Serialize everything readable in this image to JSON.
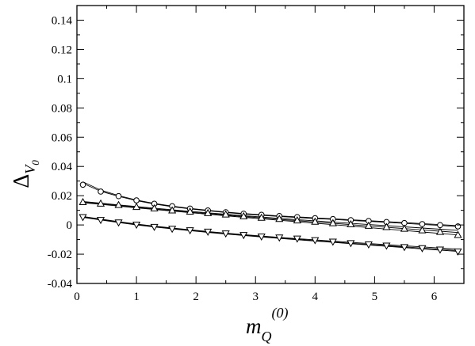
{
  "chart_data": {
    "type": "line",
    "x_range": [
      0,
      6.5
    ],
    "y_range": [
      -0.04,
      0.15
    ],
    "x_ticks": [
      {
        "value": 0,
        "label": "0"
      },
      {
        "value": 1,
        "label": "1"
      },
      {
        "value": 2,
        "label": "2"
      },
      {
        "value": 3,
        "label": "3"
      },
      {
        "value": 4,
        "label": "4"
      },
      {
        "value": 5,
        "label": "5"
      },
      {
        "value": 6,
        "label": "6"
      }
    ],
    "y_ticks": [
      {
        "value": -0.04,
        "label": "-0.04"
      },
      {
        "value": -0.02,
        "label": "-0.02"
      },
      {
        "value": 0,
        "label": "0"
      },
      {
        "value": 0.02,
        "label": "0.02"
      },
      {
        "value": 0.04,
        "label": "0.04"
      },
      {
        "value": 0.06,
        "label": "0.06"
      },
      {
        "value": 0.08,
        "label": "0.08"
      },
      {
        "value": 0.1,
        "label": "0.1"
      },
      {
        "value": 0.12,
        "label": "0.12"
      },
      {
        "value": 0.14,
        "label": "0.14"
      }
    ],
    "xlabel": {
      "main": "m",
      "sub": "Q",
      "sup": "(0)"
    },
    "ylabel": {
      "main": "Δ",
      "sub": "V",
      "subsub": "0"
    },
    "grid": false,
    "marker_color": "#000000",
    "series": [
      {
        "marker": "circle",
        "x": [
          0.1,
          0.4,
          0.7,
          1.0,
          1.3,
          1.6,
          1.9,
          2.2,
          2.5,
          2.8,
          3.1,
          3.4,
          3.7,
          4.0,
          4.3,
          4.6,
          4.9,
          5.2,
          5.5,
          5.8,
          6.1,
          6.4
        ],
        "y": [
          0.0275,
          0.0228,
          0.0197,
          0.0168,
          0.0145,
          0.0128,
          0.0112,
          0.0099,
          0.0087,
          0.0077,
          0.0069,
          0.0061,
          0.0054,
          0.0046,
          0.004,
          0.0033,
          0.0027,
          0.002,
          0.0013,
          0.0006,
          -0.0001,
          -0.001
        ],
        "lines_y": [
          [
            0.0295,
            0.0238,
            0.0201,
            0.017,
            0.0147,
            0.0129,
            0.0113,
            0.01,
            0.0088,
            0.0078,
            0.007,
            0.0062,
            0.0055,
            0.0048,
            0.0042,
            0.0035,
            0.0029,
            0.0022,
            0.0016,
            0.0009,
            0.0002,
            -0.0005
          ],
          [
            0.0285,
            0.023,
            0.0196,
            0.0166,
            0.0143,
            0.0125,
            0.011,
            0.0097,
            0.0085,
            0.0075,
            0.0066,
            0.0058,
            0.0051,
            0.0044,
            0.0038,
            0.0031,
            0.0025,
            0.0018,
            0.0011,
            0.0004,
            -0.0003,
            -0.0012
          ]
        ]
      },
      {
        "marker": "triangle-up",
        "x": [
          0.1,
          0.4,
          0.7,
          1.0,
          1.3,
          1.6,
          1.9,
          2.2,
          2.5,
          2.8,
          3.1,
          3.4,
          3.7,
          4.0,
          4.3,
          4.6,
          4.9,
          5.2,
          5.5,
          5.8,
          6.1,
          6.4
        ],
        "y": [
          0.0155,
          0.0145,
          0.0135,
          0.0122,
          0.0112,
          0.0098,
          0.009,
          0.008,
          0.007,
          0.0058,
          0.0048,
          0.004,
          0.003,
          0.0021,
          0.0011,
          0.0003,
          -0.0007,
          -0.0016,
          -0.0027,
          -0.0038,
          -0.0049,
          -0.007
        ],
        "lines_y": [
          [
            0.016,
            0.0149,
            0.0137,
            0.0126,
            0.0115,
            0.0104,
            0.0093,
            0.0083,
            0.0073,
            0.0063,
            0.0054,
            0.0045,
            0.0036,
            0.0028,
            0.0019,
            0.0011,
            0.0003,
            -0.0005,
            -0.0013,
            -0.0021,
            -0.0029,
            -0.0037
          ],
          [
            0.0156,
            0.0145,
            0.0133,
            0.0121,
            0.011,
            0.0099,
            0.0088,
            0.0078,
            0.0068,
            0.0058,
            0.0048,
            0.0038,
            0.0029,
            0.002,
            0.0011,
            0.0002,
            -0.0007,
            -0.0016,
            -0.0025,
            -0.0034,
            -0.0043,
            -0.0052
          ],
          [
            0.0152,
            0.0141,
            0.0129,
            0.0117,
            0.0106,
            0.0095,
            0.0084,
            0.0073,
            0.0063,
            0.0052,
            0.0042,
            0.0032,
            0.0022,
            0.0012,
            0.0002,
            -0.0008,
            -0.0018,
            -0.0028,
            -0.0038,
            -0.0048,
            -0.0058,
            -0.0068
          ]
        ]
      },
      {
        "marker": "triangle-down",
        "x": [
          0.1,
          0.4,
          0.7,
          1.0,
          1.3,
          1.6,
          1.9,
          2.2,
          2.5,
          2.8,
          3.1,
          3.4,
          3.7,
          4.0,
          4.3,
          4.6,
          4.9,
          5.2,
          5.5,
          5.8,
          6.1,
          6.4
        ],
        "y": [
          0.0055,
          0.0035,
          0.0018,
          0.0003,
          -0.0012,
          -0.0025,
          -0.0035,
          -0.0045,
          -0.0057,
          -0.0068,
          -0.0078,
          -0.0085,
          -0.0092,
          -0.0103,
          -0.0113,
          -0.0123,
          -0.0132,
          -0.014,
          -0.015,
          -0.0158,
          -0.0167,
          -0.018
        ],
        "lines_y": [
          [
            0.0058,
            0.004,
            0.0022,
            0.0006,
            -0.0008,
            -0.0021,
            -0.0033,
            -0.0045,
            -0.0056,
            -0.0066,
            -0.0076,
            -0.0085,
            -0.0094,
            -0.0102,
            -0.0111,
            -0.0119,
            -0.0127,
            -0.0135,
            -0.0143,
            -0.015,
            -0.0158,
            -0.0165
          ],
          [
            0.0055,
            0.0037,
            0.0019,
            0.0003,
            -0.0011,
            -0.0024,
            -0.0036,
            -0.0048,
            -0.0059,
            -0.0069,
            -0.0079,
            -0.0089,
            -0.0098,
            -0.0107,
            -0.0116,
            -0.0125,
            -0.0133,
            -0.0142,
            -0.015,
            -0.0158,
            -0.0166,
            -0.0175
          ],
          [
            0.0052,
            0.0034,
            0.0016,
            0.0,
            -0.0014,
            -0.0027,
            -0.0039,
            -0.0051,
            -0.0062,
            -0.0072,
            -0.0082,
            -0.0092,
            -0.0101,
            -0.011,
            -0.0119,
            -0.0128,
            -0.0137,
            -0.0146,
            -0.0155,
            -0.0164,
            -0.0172,
            -0.0181
          ]
        ]
      }
    ]
  }
}
